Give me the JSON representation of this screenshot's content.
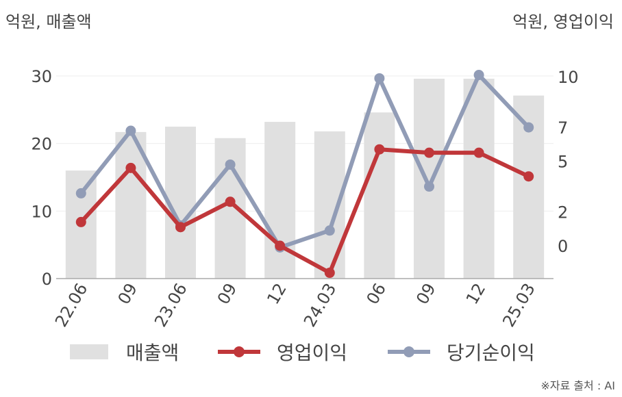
{
  "unit_left": "억원, 매출액",
  "unit_right": "억원, 영업이익",
  "source": "※자료 출처 : AI",
  "colors": {
    "bar": "#e0e0e0",
    "operating": "#c0373a",
    "net": "#919cb6",
    "axis": "#aaaaaa",
    "grid": "#eeeeee"
  },
  "legend": {
    "revenue": "매출액",
    "operating": "영업이익",
    "net": "당기순이익"
  },
  "chart_data": {
    "type": "bar",
    "categories": [
      "22.06",
      "09",
      "23.06",
      "09",
      "12",
      "24.03",
      "06",
      "09",
      "12",
      "25.03"
    ],
    "y_left": {
      "ticks": [
        0,
        10,
        20,
        30
      ],
      "range": [
        0,
        30
      ]
    },
    "y_right": {
      "ticks": [
        0,
        2,
        5,
        7,
        10
      ],
      "range": [
        -2,
        10
      ]
    },
    "grid": true,
    "legend_position": "bottom",
    "series": [
      {
        "name": "매출액",
        "type": "bar",
        "axis": "left",
        "values": [
          16.0,
          21.7,
          22.5,
          20.8,
          23.2,
          21.8,
          24.6,
          29.6,
          29.6,
          27.1
        ]
      },
      {
        "name": "영업이익",
        "type": "line",
        "axis": "right",
        "values": [
          1.4,
          4.6,
          1.1,
          2.6,
          0.0,
          -1.6,
          5.7,
          5.5,
          5.5,
          4.1
        ]
      },
      {
        "name": "당기순이익",
        "type": "line",
        "axis": "right",
        "values": [
          3.1,
          6.8,
          1.2,
          4.8,
          -0.1,
          0.9,
          9.9,
          3.5,
          10.1,
          7.0
        ]
      }
    ]
  }
}
